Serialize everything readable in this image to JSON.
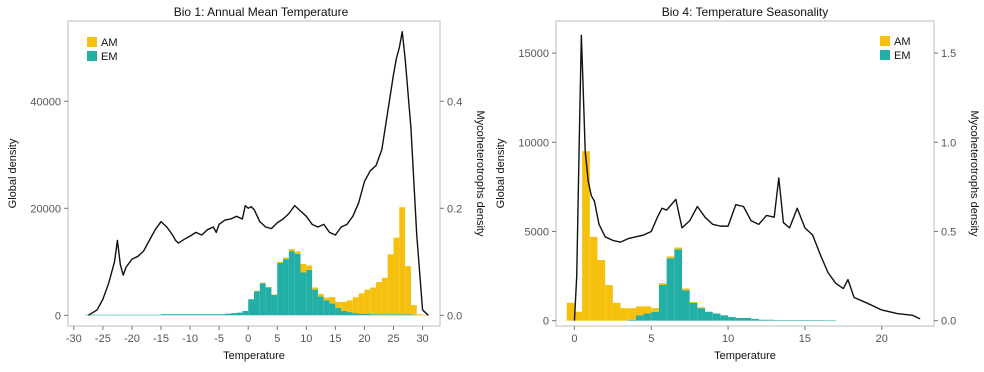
{
  "chart_data": [
    {
      "type": "bar",
      "title": "Bio 1: Annual Mean Temperature",
      "xlabel": "Temperature",
      "ylabel": "Global density",
      "y2label": "Mycoheterotrophs density",
      "xlim": [
        -31,
        33
      ],
      "xticks": [
        -30,
        -25,
        -20,
        -15,
        -10,
        -5,
        0,
        5,
        10,
        15,
        20,
        25,
        30
      ],
      "ylim": [
        -2000,
        55000
      ],
      "yticks": [
        0,
        20000,
        40000
      ],
      "y2lim": [
        -0.02,
        0.55
      ],
      "y2ticks": [
        "0.0",
        "0.2",
        "0.4"
      ],
      "y2tick_values": [
        0,
        0.2,
        0.4
      ],
      "legend_position": "top-left",
      "legend": [
        {
          "name": "AM",
          "color": "#F5C10E"
        },
        {
          "name": "EM",
          "color": "#21AFA6"
        }
      ],
      "bin_width": 1,
      "bins": [
        {
          "x0": -28,
          "em": 0.001,
          "am": 0
        },
        {
          "x0": -27,
          "em": 0.001,
          "am": 0
        },
        {
          "x0": -26,
          "em": 0.001,
          "am": 0
        },
        {
          "x0": -25,
          "em": 0.001,
          "am": 0
        },
        {
          "x0": -24,
          "em": 0.001,
          "am": 0
        },
        {
          "x0": -23,
          "em": 0.001,
          "am": 0
        },
        {
          "x0": -22,
          "em": 0.001,
          "am": 0
        },
        {
          "x0": -21,
          "em": 0.001,
          "am": 0
        },
        {
          "x0": -20,
          "em": 0.001,
          "am": 0
        },
        {
          "x0": -19,
          "em": 0.001,
          "am": 0
        },
        {
          "x0": -18,
          "em": 0.001,
          "am": 0
        },
        {
          "x0": -17,
          "em": 0.001,
          "am": 0
        },
        {
          "x0": -16,
          "em": 0.001,
          "am": 0
        },
        {
          "x0": -15,
          "em": 0.002,
          "am": 0
        },
        {
          "x0": -14,
          "em": 0.002,
          "am": 0
        },
        {
          "x0": -13,
          "em": 0.002,
          "am": 0
        },
        {
          "x0": -12,
          "em": 0.002,
          "am": 0
        },
        {
          "x0": -11,
          "em": 0.002,
          "am": 0
        },
        {
          "x0": -10,
          "em": 0.002,
          "am": 0
        },
        {
          "x0": -9,
          "em": 0.002,
          "am": 0
        },
        {
          "x0": -8,
          "em": 0.002,
          "am": 0
        },
        {
          "x0": -7,
          "em": 0.002,
          "am": 0
        },
        {
          "x0": -6,
          "em": 0.002,
          "am": 0
        },
        {
          "x0": -5,
          "em": 0.002,
          "am": 0
        },
        {
          "x0": -4,
          "em": 0.003,
          "am": 0
        },
        {
          "x0": -3,
          "em": 0.004,
          "am": 0
        },
        {
          "x0": -2,
          "em": 0.005,
          "am": 0
        },
        {
          "x0": -1,
          "em": 0.008,
          "am": 0
        },
        {
          "x0": 0,
          "em": 0.03,
          "am": 0
        },
        {
          "x0": 1,
          "em": 0.045,
          "am": 0.001
        },
        {
          "x0": 2,
          "em": 0.06,
          "am": 0.001
        },
        {
          "x0": 3,
          "em": 0.052,
          "am": 0.001
        },
        {
          "x0": 4,
          "em": 0.038,
          "am": 0.001
        },
        {
          "x0": 5,
          "em": 0.098,
          "am": 0.002
        },
        {
          "x0": 6,
          "em": 0.105,
          "am": 0.003
        },
        {
          "x0": 7,
          "em": 0.12,
          "am": 0.004
        },
        {
          "x0": 8,
          "em": 0.115,
          "am": 0.004
        },
        {
          "x0": 9,
          "em": 0.08,
          "am": 0.016
        },
        {
          "x0": 10,
          "em": 0.085,
          "am": 0.008
        },
        {
          "x0": 11,
          "em": 0.048,
          "am": 0.004
        },
        {
          "x0": 12,
          "em": 0.035,
          "am": 0.005
        },
        {
          "x0": 13,
          "em": 0.028,
          "am": 0.005
        },
        {
          "x0": 14,
          "em": 0.022,
          "am": 0.012
        },
        {
          "x0": 15,
          "em": 0.014,
          "am": 0.011
        },
        {
          "x0": 16,
          "em": 0.008,
          "am": 0.017
        },
        {
          "x0": 17,
          "em": 0.006,
          "am": 0.022
        },
        {
          "x0": 18,
          "em": 0.004,
          "am": 0.03
        },
        {
          "x0": 19,
          "em": 0.003,
          "am": 0.038
        },
        {
          "x0": 20,
          "em": 0.003,
          "am": 0.045
        },
        {
          "x0": 21,
          "em": 0.002,
          "am": 0.05
        },
        {
          "x0": 22,
          "em": 0.002,
          "am": 0.06
        },
        {
          "x0": 23,
          "em": 0.002,
          "am": 0.068
        },
        {
          "x0": 24,
          "em": 0.002,
          "am": 0.112
        },
        {
          "x0": 25,
          "em": 0.002,
          "am": 0.143
        },
        {
          "x0": 26,
          "em": 0.002,
          "am": 0.2
        },
        {
          "x0": 27,
          "em": 0.002,
          "am": 0.09
        },
        {
          "x0": 28,
          "em": 0.001,
          "am": 0.018
        },
        {
          "x0": 29,
          "em": 0,
          "am": 0.002
        },
        {
          "x0": 30,
          "em": 0,
          "am": 0.001
        }
      ],
      "global_density_line": {
        "x": [
          -27.5,
          -26,
          -25,
          -24,
          -23,
          -22.5,
          -22,
          -21.5,
          -21,
          -20,
          -19,
          -18,
          -17,
          -16,
          -15,
          -14.5,
          -14,
          -13,
          -12.5,
          -12,
          -11,
          -10,
          -9,
          -8,
          -7,
          -6,
          -5.5,
          -5,
          -4,
          -3,
          -2,
          -1,
          -0.5,
          0,
          0.5,
          1,
          2,
          3,
          4,
          5,
          6,
          7,
          8,
          9,
          10,
          11,
          12,
          13,
          14,
          15,
          16,
          17,
          18,
          19,
          20,
          21,
          22,
          23,
          24,
          25,
          25.5,
          26,
          26.5,
          27,
          28,
          29,
          30,
          31
        ],
        "y": [
          0,
          1000,
          3000,
          6000,
          10000,
          14000,
          9500,
          7500,
          9000,
          10500,
          11000,
          12000,
          14000,
          16000,
          17500,
          17000,
          16500,
          15000,
          14000,
          13500,
          14200,
          14800,
          15500,
          15000,
          16000,
          16500,
          15500,
          17000,
          17800,
          18000,
          18500,
          18000,
          20500,
          20000,
          20300,
          19800,
          17500,
          16500,
          16200,
          17300,
          18000,
          19000,
          20500,
          19500,
          18500,
          17000,
          16500,
          17000,
          15500,
          15000,
          16500,
          17000,
          18500,
          21000,
          25000,
          27000,
          28000,
          31000,
          38000,
          45000,
          48000,
          50000,
          53000,
          48000,
          35000,
          15000,
          1000,
          0
        ]
      }
    },
    {
      "type": "bar",
      "title": "Bio 4: Temperature Seasonality",
      "xlabel": "Temperature",
      "ylabel": "Global density",
      "y2label": "Mycoheterotrophs density",
      "xlim": [
        -1.2,
        23.4
      ],
      "xticks": [
        0,
        5,
        10,
        15,
        20
      ],
      "ylim": [
        -300,
        16800
      ],
      "yticks": [
        0,
        5000,
        10000,
        15000
      ],
      "y2lim": [
        -0.03,
        1.68
      ],
      "y2ticks": [
        "0.0",
        "0.5",
        "1.0",
        "1.5"
      ],
      "y2tick_values": [
        0,
        0.5,
        1.0,
        1.5
      ],
      "legend_position": "top-right",
      "legend": [
        {
          "name": "AM",
          "color": "#F5C10E"
        },
        {
          "name": "EM",
          "color": "#21AFA6"
        }
      ],
      "bin_width": 0.5,
      "bins": [
        {
          "x0": -0.5,
          "em": 0,
          "am": 0.1
        },
        {
          "x0": 0,
          "em": 0,
          "am": 0.05
        },
        {
          "x0": 0.5,
          "em": 0,
          "am": 0.95
        },
        {
          "x0": 1,
          "em": 0,
          "am": 0.47
        },
        {
          "x0": 1.5,
          "em": 0,
          "am": 0.34
        },
        {
          "x0": 2,
          "em": 0,
          "am": 0.2
        },
        {
          "x0": 2.5,
          "em": 0,
          "am": 0.1
        },
        {
          "x0": 3,
          "em": 0,
          "am": 0.07
        },
        {
          "x0": 3.5,
          "em": 0.005,
          "am": 0.065
        },
        {
          "x0": 4,
          "em": 0.03,
          "am": 0.05
        },
        {
          "x0": 4.5,
          "em": 0.04,
          "am": 0.04
        },
        {
          "x0": 5,
          "em": 0.05,
          "am": 0.02
        },
        {
          "x0": 5.5,
          "em": 0.2,
          "am": 0.01
        },
        {
          "x0": 6,
          "em": 0.35,
          "am": 0.01
        },
        {
          "x0": 6.5,
          "em": 0.4,
          "am": 0.01
        },
        {
          "x0": 7,
          "em": 0.17,
          "am": 0.01
        },
        {
          "x0": 7.5,
          "em": 0.1,
          "am": 0.005
        },
        {
          "x0": 8,
          "em": 0.07,
          "am": 0.005
        },
        {
          "x0": 8.5,
          "em": 0.05,
          "am": 0
        },
        {
          "x0": 9,
          "em": 0.04,
          "am": 0
        },
        {
          "x0": 9.5,
          "em": 0.03,
          "am": 0
        },
        {
          "x0": 10,
          "em": 0.02,
          "am": 0
        },
        {
          "x0": 10.5,
          "em": 0.015,
          "am": 0
        },
        {
          "x0": 11,
          "em": 0.015,
          "am": 0
        },
        {
          "x0": 11.5,
          "em": 0.01,
          "am": 0
        },
        {
          "x0": 12,
          "em": 0.005,
          "am": 0
        },
        {
          "x0": 12.5,
          "em": 0.005,
          "am": 0
        },
        {
          "x0": 13,
          "em": 0.003,
          "am": 0
        },
        {
          "x0": 13.5,
          "em": 0.003,
          "am": 0
        },
        {
          "x0": 14,
          "em": 0.003,
          "am": 0
        },
        {
          "x0": 14.5,
          "em": 0.002,
          "am": 0
        },
        {
          "x0": 15,
          "em": 0.002,
          "am": 0
        },
        {
          "x0": 15.5,
          "em": 0.002,
          "am": 0
        },
        {
          "x0": 16,
          "em": 0.001,
          "am": 0
        },
        {
          "x0": 16.5,
          "em": 0.001,
          "am": 0
        }
      ],
      "global_density_line": {
        "x": [
          0,
          0.15,
          0.3,
          0.45,
          0.55,
          0.7,
          0.9,
          1.1,
          1.3,
          1.6,
          2.0,
          2.5,
          3.0,
          3.5,
          4.0,
          4.5,
          5.0,
          5.4,
          5.7,
          6.0,
          6.3,
          6.6,
          7.0,
          7.5,
          8.0,
          8.5,
          9.0,
          9.5,
          10.0,
          10.5,
          11.0,
          11.5,
          12.0,
          12.5,
          13.0,
          13.3,
          13.6,
          14.0,
          14.5,
          15.0,
          15.5,
          16.0,
          16.5,
          17.0,
          17.5,
          17.8,
          18.2,
          19.0,
          20.0,
          21.0,
          22.0,
          22.5
        ],
        "y": [
          0,
          2500,
          9500,
          16000,
          13500,
          9500,
          7800,
          7000,
          6700,
          5400,
          4700,
          4500,
          4400,
          4600,
          4700,
          4800,
          5000,
          5800,
          6300,
          6200,
          6500,
          6800,
          5200,
          5600,
          6400,
          5800,
          5400,
          5300,
          5300,
          6500,
          6400,
          5600,
          5400,
          5900,
          5800,
          8000,
          5500,
          5200,
          6300,
          5200,
          4800,
          3700,
          2700,
          2100,
          1800,
          2300,
          1300,
          1000,
          600,
          400,
          300,
          100
        ]
      }
    }
  ]
}
